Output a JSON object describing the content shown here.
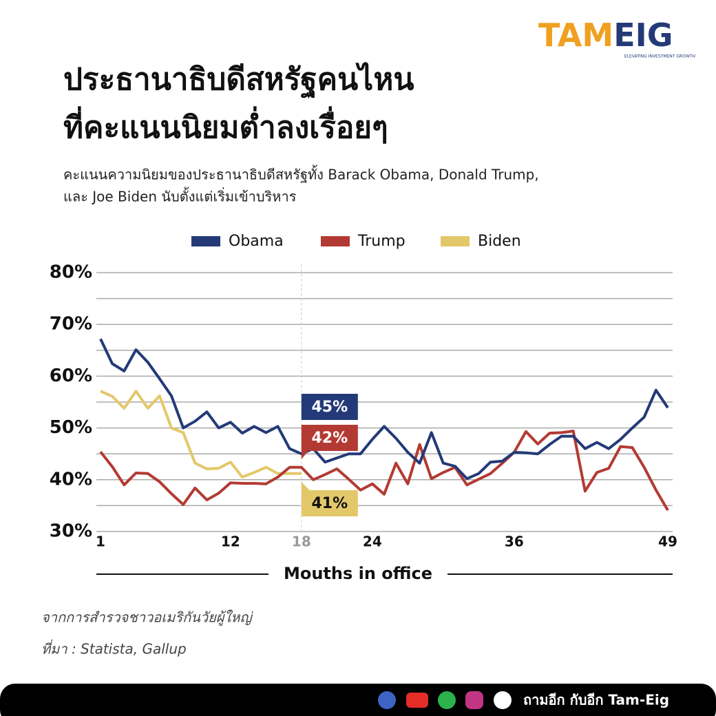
{
  "brand": {
    "parts": [
      "TAM",
      "EIG"
    ],
    "tagline": "ELEVATING INVESTMENT GROWTH"
  },
  "chart_data": {
    "type": "line",
    "title": [
      "ประธานาธิบดีสหรัฐคนไหน",
      "ที่คะแนนนิยมต่ำลงเรื่อยๆ"
    ],
    "subtitle": [
      "คะแนนความนิยมของประธานาธิบดีสหรัฐทั้ง Barack Obama, Donald Trump,",
      "และ Joe Biden นับตั้งแต่เริ่มเข้าบริหาร"
    ],
    "x_label": "Mouths in office",
    "x": [
      1,
      2,
      3,
      4,
      5,
      6,
      7,
      8,
      9,
      10,
      11,
      12,
      13,
      14,
      15,
      16,
      17,
      18,
      19,
      20,
      21,
      22,
      23,
      24,
      25,
      26,
      27,
      28,
      29,
      30,
      31,
      32,
      33,
      34,
      35,
      36,
      37,
      38,
      39,
      40,
      41,
      42,
      43,
      44,
      45,
      46,
      47,
      48,
      49
    ],
    "series": [
      {
        "name": "Obama",
        "color": "#243a78",
        "values": [
          67.2,
          62.4,
          61,
          65.1,
          62.7,
          59.5,
          56.2,
          50,
          51.3,
          53.1,
          50,
          51.1,
          49,
          50.3,
          49.1,
          50.3,
          46,
          45,
          46,
          43.4,
          44.2,
          45,
          45,
          47.8,
          50.3,
          48,
          45.3,
          43.2,
          49.1,
          43.2,
          42.6,
          40.2,
          41.2,
          43.4,
          43.6,
          45.3,
          45.2,
          45,
          46.8,
          48.4,
          48.4,
          46,
          47.2,
          46,
          47.8,
          50,
          52.1,
          57.3,
          53.9
        ]
      },
      {
        "name": "Trump",
        "color": "#b33a33",
        "values": [
          45.4,
          42.5,
          39,
          41.3,
          41.2,
          39.6,
          37.3,
          35.2,
          38.4,
          36.1,
          37.4,
          39.4,
          39.3,
          39.3,
          39.2,
          40.5,
          42.4,
          42.4,
          40,
          41,
          42.1,
          40.1,
          38,
          39.2,
          37.2,
          43.2,
          39.2,
          46.8,
          40.2,
          41.4,
          42.4,
          39,
          40.1,
          41.2,
          43.2,
          45.3,
          49.3,
          46.9,
          49,
          49.1,
          49.4,
          37.8,
          41.4,
          42.2,
          46.4,
          46.2,
          42.4,
          38,
          34.1
        ]
      },
      {
        "name": "Biden",
        "color": "#e3c86a",
        "values": [
          57.1,
          56.1,
          53.8,
          57.1,
          53.8,
          56.2,
          50,
          49.1,
          43.2,
          42.1,
          42.2,
          43.4,
          40.5,
          41.4,
          42.4,
          41.2,
          41.2,
          41.2,
          null,
          null,
          null,
          null,
          null,
          null,
          null,
          null,
          null,
          null,
          null,
          null,
          null,
          null,
          null,
          null,
          null,
          null,
          null,
          null,
          null,
          null,
          null,
          null,
          null,
          null,
          null,
          null,
          null,
          null,
          null
        ]
      }
    ],
    "annotations": [
      {
        "series": 0,
        "x": 18,
        "value": 45,
        "label": "45%"
      },
      {
        "series": 1,
        "x": 18,
        "value": 42,
        "label": "42%"
      },
      {
        "series": 2,
        "x": 18,
        "value": 41,
        "label": "41%"
      }
    ],
    "highlight_x": 18,
    "xlim": [
      1,
      49
    ],
    "xticks": [
      1,
      12,
      18,
      24,
      36,
      49
    ],
    "ylim": [
      30,
      80
    ],
    "yticks": [
      {
        "value": 30,
        "label": "30%"
      },
      {
        "value": 40,
        "label": "40%"
      },
      {
        "value": 50,
        "label": "50%"
      },
      {
        "value": 60,
        "label": "60%"
      },
      {
        "value": 70,
        "label": "70%"
      },
      {
        "value": 80,
        "label": "80%"
      }
    ],
    "minor_yticks": [
      35,
      45,
      55,
      65,
      75
    ],
    "grid": true,
    "legend": "top"
  },
  "notes": [
    "จากการสำรวจชาวอเมริกันวัยผู้ใหญ่",
    "ที่มา : Statista, Gallup"
  ],
  "footer": "ถามอีก กับอีก Tam-Eig"
}
